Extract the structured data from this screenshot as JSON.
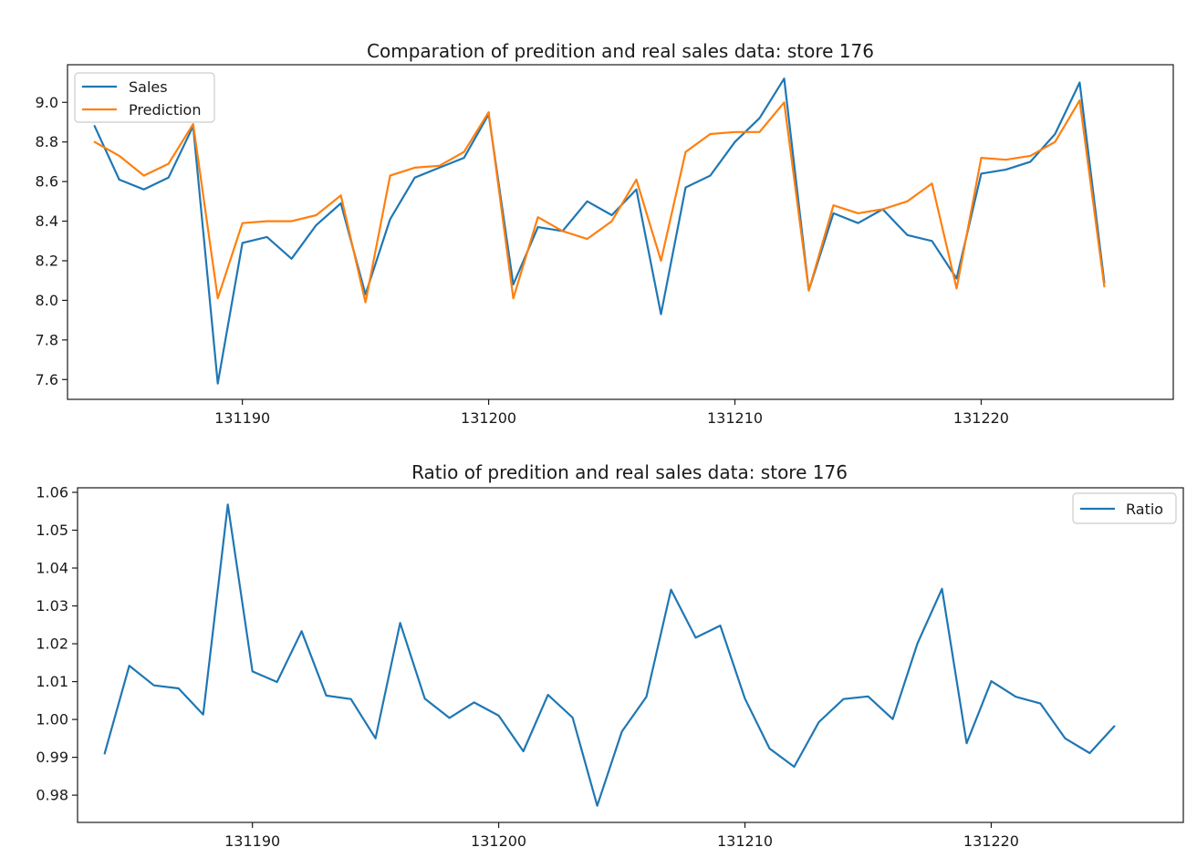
{
  "chart_data": [
    {
      "type": "line",
      "title": "Comparation of predition and real sales data: store 176",
      "xlabel": "",
      "ylabel": "",
      "x": [
        131184,
        131185,
        131186,
        131187,
        131188,
        131189,
        131190,
        131191,
        131192,
        131193,
        131194,
        131195,
        131196,
        131197,
        131198,
        131199,
        131200,
        131201,
        131202,
        131203,
        131204,
        131205,
        131206,
        131207,
        131208,
        131209,
        131210,
        131211,
        131212,
        131213,
        131214,
        131215,
        131216,
        131217,
        131218,
        131219,
        131220,
        131221,
        131222,
        131223,
        131224,
        131225
      ],
      "xlim": [
        131182.9,
        131227.8
      ],
      "ylim": [
        7.5,
        9.19
      ],
      "xticks": [
        131190,
        131200,
        131210,
        131220
      ],
      "xtick_labels": [
        "131190",
        "131200",
        "131210",
        "131220"
      ],
      "yticks": [
        7.6,
        7.8,
        8.0,
        8.2,
        8.4,
        8.6,
        8.8,
        9.0
      ],
      "ytick_labels": [
        "7.6",
        "7.8",
        "8.0",
        "8.2",
        "8.4",
        "8.6",
        "8.8",
        "9.0"
      ],
      "grid": false,
      "legend_position": "upper-left",
      "series": [
        {
          "name": "Sales",
          "color": "#1f77b4",
          "values": [
            8.88,
            8.61,
            8.56,
            8.62,
            8.88,
            7.58,
            8.29,
            8.32,
            8.21,
            8.38,
            8.49,
            8.03,
            8.41,
            8.62,
            8.67,
            8.72,
            8.94,
            8.08,
            8.37,
            8.35,
            8.5,
            8.43,
            8.56,
            7.93,
            8.57,
            8.63,
            8.8,
            8.92,
            9.12,
            8.05,
            8.44,
            8.39,
            8.46,
            8.33,
            8.3,
            8.11,
            8.64,
            8.66,
            8.7,
            8.84,
            9.1,
            8.09
          ]
        },
        {
          "name": "Prediction",
          "color": "#ff7f0e",
          "values": [
            8.8,
            8.73,
            8.63,
            8.69,
            8.89,
            8.01,
            8.39,
            8.4,
            8.4,
            8.43,
            8.53,
            7.99,
            8.63,
            8.67,
            8.68,
            8.75,
            8.95,
            8.01,
            8.42,
            8.35,
            8.31,
            8.4,
            8.61,
            8.2,
            8.75,
            8.84,
            8.85,
            8.85,
            9.0,
            8.05,
            8.48,
            8.44,
            8.46,
            8.5,
            8.59,
            8.06,
            8.72,
            8.71,
            8.73,
            8.8,
            9.01,
            8.07
          ]
        }
      ]
    },
    {
      "type": "line",
      "title": "Ratio of predition and real sales data: store 176",
      "xlabel": "",
      "ylabel": "",
      "x": [
        131184,
        131185,
        131186,
        131187,
        131188,
        131189,
        131190,
        131191,
        131192,
        131193,
        131194,
        131195,
        131196,
        131197,
        131198,
        131199,
        131200,
        131201,
        131202,
        131203,
        131204,
        131205,
        131206,
        131207,
        131208,
        131209,
        131210,
        131211,
        131212,
        131213,
        131214,
        131215,
        131216,
        131217,
        131218,
        131219,
        131220,
        131221,
        131222,
        131223,
        131224,
        131225
      ],
      "xlim": [
        131182.9,
        131227.8
      ],
      "ylim": [
        0.9728,
        1.0612
      ],
      "xticks": [
        131190,
        131200,
        131210,
        131220
      ],
      "xtick_labels": [
        "131190",
        "131200",
        "131210",
        "131220"
      ],
      "yticks": [
        0.98,
        0.99,
        1.0,
        1.01,
        1.02,
        1.03,
        1.04,
        1.05,
        1.06
      ],
      "ytick_labels": [
        "0.98",
        "0.99",
        "1.00",
        "1.01",
        "1.02",
        "1.03",
        "1.04",
        "1.05",
        "1.06"
      ],
      "grid": false,
      "legend_position": "upper-right",
      "series": [
        {
          "name": "Ratio",
          "color": "#1f77b4",
          "values": [
            0.991,
            1.0142,
            1.009,
            1.0082,
            1.0013,
            1.0568,
            1.0127,
            1.0099,
            1.0233,
            1.0063,
            1.0054,
            0.995,
            1.0255,
            1.0055,
            1.0004,
            1.0045,
            1.001,
            0.9916,
            1.0065,
            1.0005,
            0.9772,
            0.9968,
            1.006,
            1.0343,
            1.0216,
            1.0248,
            1.0055,
            0.9923,
            0.9875,
            0.9993,
            1.0054,
            1.0061,
            1.0001,
            1.02,
            1.0345,
            0.9937,
            1.0101,
            1.006,
            1.0042,
            0.995,
            0.9911,
            0.9982
          ]
        }
      ]
    }
  ]
}
